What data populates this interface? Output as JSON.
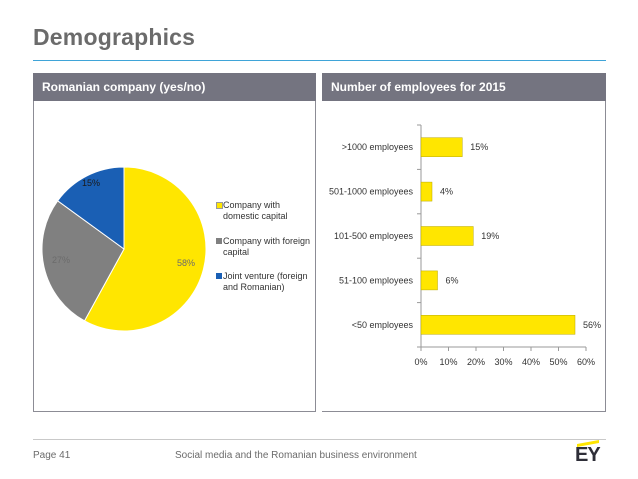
{
  "page": {
    "title": "Demographics",
    "footer_page": "Page 41",
    "footer_text": "Social media and the Romanian business environment",
    "logo": "EY"
  },
  "colors": {
    "header_bg": "#747480",
    "accent_rule": "#3fa4d8",
    "yellow": "#ffe600",
    "gray": "#808080",
    "blue": "#1a5fb4"
  },
  "chart_data": [
    {
      "type": "pie",
      "title": "Romanian company (yes/no)",
      "slices": [
        {
          "label": "Company with domestic capital",
          "value": 58,
          "display": "58%",
          "color": "#ffe600"
        },
        {
          "label": "Company with foreign capital",
          "value": 27,
          "display": "27%",
          "color": "#808080"
        },
        {
          "label": "Joint venture (foreign and Romanian)",
          "value": 15,
          "display": "15%",
          "color": "#1a5fb4"
        }
      ],
      "legend": "right"
    },
    {
      "type": "bar",
      "orientation": "horizontal",
      "title": "Number of employees for 2015",
      "categories": [
        ">1000 employees",
        "501-1000 employees",
        "101-500 employees",
        "51-100 employees",
        "<50 employees"
      ],
      "values": [
        15,
        4,
        19,
        6,
        56
      ],
      "value_labels": [
        "15%",
        "4%",
        "19%",
        "6%",
        "56%"
      ],
      "color": "#ffe600",
      "xlim": [
        0,
        60
      ],
      "xticks": [
        0,
        10,
        20,
        30,
        40,
        50,
        60
      ],
      "xtick_labels": [
        "0%",
        "10%",
        "20%",
        "30%",
        "40%",
        "50%",
        "60%"
      ]
    }
  ]
}
